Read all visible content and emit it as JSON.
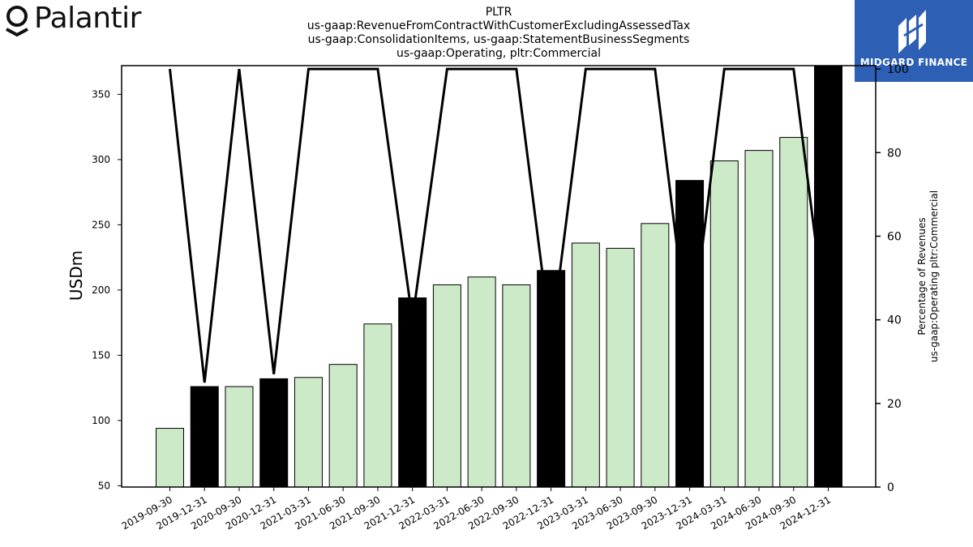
{
  "branding": {
    "left_logo": "Palantir",
    "right_logo": "MIDGARD FINANCE"
  },
  "chart_data": {
    "type": "bar",
    "title_lines": [
      "PLTR",
      "us-gaap:RevenueFromContractWithCustomerExcludingAssessedTax",
      "us-gaap:ConsolidationItems, us-gaap:StatementBusinessSegments",
      "us-gaap:Operating, pltr:Commercial"
    ],
    "ylabel": "USDm",
    "y2label_lines": [
      "Percentage of Revenues",
      "us-gaap:Operating pltr:Commercial"
    ],
    "ylim": [
      49,
      372
    ],
    "y2lim": [
      0,
      100.8
    ],
    "yticks": [
      50,
      100,
      150,
      200,
      250,
      300,
      350
    ],
    "y2ticks": [
      0,
      20,
      40,
      60,
      80,
      100
    ],
    "categories": [
      "2019-09-30",
      "2019-12-31",
      "2020-09-30",
      "2020-12-31",
      "2021-03-31",
      "2021-06-30",
      "2021-09-30",
      "2021-12-31",
      "2022-03-31",
      "2022-06-30",
      "2022-09-30",
      "2022-12-31",
      "2023-03-31",
      "2023-06-30",
      "2023-09-30",
      "2023-12-31",
      "2024-03-31",
      "2024-06-30",
      "2024-09-30",
      "2024-12-31"
    ],
    "series": [
      {
        "type": "bar",
        "values": [
          94,
          126,
          126,
          132,
          133,
          143,
          174,
          194,
          204,
          210,
          204,
          215,
          236,
          232,
          251,
          284,
          299,
          307,
          317,
          372
        ],
        "highlight": [
          false,
          true,
          false,
          true,
          false,
          false,
          false,
          true,
          false,
          false,
          false,
          true,
          false,
          false,
          false,
          true,
          false,
          false,
          false,
          true
        ],
        "color": "#cdeac8",
        "highlight_color": "#000000"
      },
      {
        "type": "line",
        "axis": "right",
        "values": [
          100,
          25,
          100,
          27,
          100,
          100,
          100,
          40,
          100,
          100,
          100,
          35,
          100,
          100,
          100,
          33,
          100,
          100,
          100,
          35
        ],
        "color": "#000000"
      }
    ]
  }
}
